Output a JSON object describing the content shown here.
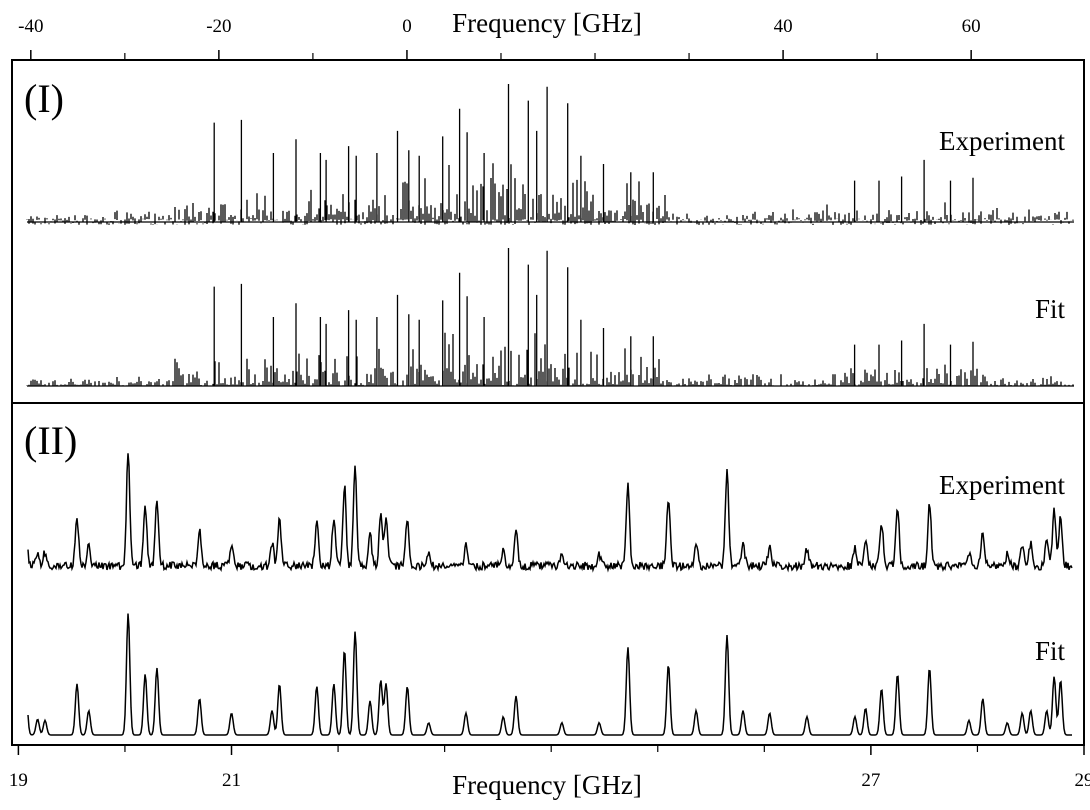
{
  "chart_data": {
    "type": "line",
    "top_axis": {
      "label": "Frequency [GHz]",
      "ticks": [
        -40,
        -20,
        0,
        40,
        60
      ],
      "minor_ticks": [
        -30,
        -10,
        10,
        20,
        30,
        50
      ],
      "range": [
        -42,
        72
      ]
    },
    "bottom_axis": {
      "label": "Frequency [GHz]",
      "ticks": [
        19,
        21,
        27,
        29
      ],
      "minor_ticks": [
        20,
        22,
        23,
        24,
        25,
        26,
        28
      ],
      "range": [
        18.94,
        29.0
      ]
    },
    "panels": [
      {
        "label": "(I)",
        "traces": [
          {
            "name": "Experiment",
            "kind": "sticks-with-noise"
          },
          {
            "name": "Fit",
            "kind": "sticks"
          }
        ],
        "peaks_top_axis": [
          {
            "x": -20.5,
            "h": 0.72
          },
          {
            "x": -17.6,
            "h": 0.74
          },
          {
            "x": -14.2,
            "h": 0.5
          },
          {
            "x": -11.8,
            "h": 0.6
          },
          {
            "x": -9.2,
            "h": 0.5
          },
          {
            "x": -8.6,
            "h": 0.45
          },
          {
            "x": -6.2,
            "h": 0.55
          },
          {
            "x": -5.4,
            "h": 0.48
          },
          {
            "x": -3.2,
            "h": 0.5
          },
          {
            "x": -1.0,
            "h": 0.66
          },
          {
            "x": 0.2,
            "h": 0.52
          },
          {
            "x": 1.3,
            "h": 0.48
          },
          {
            "x": 3.8,
            "h": 0.62
          },
          {
            "x": 5.6,
            "h": 0.82
          },
          {
            "x": 6.4,
            "h": 0.65
          },
          {
            "x": 8.2,
            "h": 0.5
          },
          {
            "x": 10.8,
            "h": 1.0
          },
          {
            "x": 12.9,
            "h": 0.88
          },
          {
            "x": 13.8,
            "h": 0.66
          },
          {
            "x": 14.9,
            "h": 0.98
          },
          {
            "x": 17.1,
            "h": 0.86
          },
          {
            "x": 18.5,
            "h": 0.48
          },
          {
            "x": 20.9,
            "h": 0.42
          },
          {
            "x": 23.8,
            "h": 0.36
          },
          {
            "x": 26.2,
            "h": 0.36
          },
          {
            "x": 47.6,
            "h": 0.3
          },
          {
            "x": 50.2,
            "h": 0.3
          },
          {
            "x": 52.6,
            "h": 0.33
          },
          {
            "x": 55.0,
            "h": 0.45
          },
          {
            "x": 57.8,
            "h": 0.3
          },
          {
            "x": 60.2,
            "h": 0.32
          }
        ]
      },
      {
        "label": "(II)",
        "traces": [
          {
            "name": "Experiment",
            "kind": "peaks-with-noise"
          },
          {
            "name": "Fit",
            "kind": "peaks"
          }
        ],
        "peaks_bottom_axis": [
          {
            "x": 19.07,
            "h": 0.38
          },
          {
            "x": 19.18,
            "h": 0.13
          },
          {
            "x": 19.25,
            "h": 0.12
          },
          {
            "x": 19.55,
            "h": 0.42
          },
          {
            "x": 19.66,
            "h": 0.2
          },
          {
            "x": 20.03,
            "h": 1.0
          },
          {
            "x": 20.19,
            "h": 0.5
          },
          {
            "x": 20.3,
            "h": 0.55
          },
          {
            "x": 20.7,
            "h": 0.3
          },
          {
            "x": 21.0,
            "h": 0.18
          },
          {
            "x": 21.38,
            "h": 0.2
          },
          {
            "x": 21.45,
            "h": 0.42
          },
          {
            "x": 21.8,
            "h": 0.4
          },
          {
            "x": 21.96,
            "h": 0.42
          },
          {
            "x": 22.06,
            "h": 0.7
          },
          {
            "x": 22.16,
            "h": 0.85
          },
          {
            "x": 22.3,
            "h": 0.28
          },
          {
            "x": 22.4,
            "h": 0.45
          },
          {
            "x": 22.45,
            "h": 0.42
          },
          {
            "x": 22.65,
            "h": 0.4
          },
          {
            "x": 22.85,
            "h": 0.1
          },
          {
            "x": 23.2,
            "h": 0.18
          },
          {
            "x": 23.55,
            "h": 0.15
          },
          {
            "x": 23.67,
            "h": 0.32
          },
          {
            "x": 24.1,
            "h": 0.1
          },
          {
            "x": 24.45,
            "h": 0.1
          },
          {
            "x": 24.72,
            "h": 0.72
          },
          {
            "x": 25.1,
            "h": 0.58
          },
          {
            "x": 25.36,
            "h": 0.2
          },
          {
            "x": 25.65,
            "h": 0.82
          },
          {
            "x": 25.8,
            "h": 0.2
          },
          {
            "x": 26.05,
            "h": 0.18
          },
          {
            "x": 26.4,
            "h": 0.15
          },
          {
            "x": 26.85,
            "h": 0.15
          },
          {
            "x": 26.95,
            "h": 0.22
          },
          {
            "x": 27.1,
            "h": 0.38
          },
          {
            "x": 27.25,
            "h": 0.5
          },
          {
            "x": 27.55,
            "h": 0.55
          },
          {
            "x": 27.92,
            "h": 0.12
          },
          {
            "x": 28.05,
            "h": 0.3
          },
          {
            "x": 28.28,
            "h": 0.1
          },
          {
            "x": 28.42,
            "h": 0.18
          },
          {
            "x": 28.5,
            "h": 0.2
          },
          {
            "x": 28.65,
            "h": 0.2
          },
          {
            "x": 28.72,
            "h": 0.48
          },
          {
            "x": 28.78,
            "h": 0.45
          },
          {
            "x": 29.0,
            "h": 0.15
          }
        ]
      }
    ]
  }
}
